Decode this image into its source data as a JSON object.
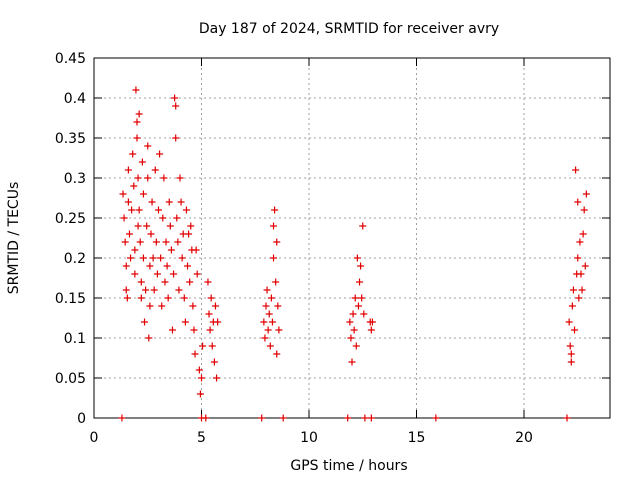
{
  "chart_data": {
    "type": "scatter",
    "title": "Day 187 of 2024, SRMTID for receiver avry",
    "xlabel": "GPS time / hours",
    "ylabel": "SRMTID / TECUs",
    "xlim": [
      0,
      24
    ],
    "ylim": [
      0,
      0.45
    ],
    "x_ticks": [
      "0",
      "5",
      "10",
      "15",
      "20"
    ],
    "y_ticks": [
      "0",
      "0.05",
      "0.1",
      "0.15",
      "0.2",
      "0.25",
      "0.3",
      "0.35",
      "0.4",
      "0.45"
    ],
    "grid": true,
    "marker": "plus",
    "color": "#e00000",
    "series": [
      {
        "points": [
          [
            1.35,
            0.28
          ],
          [
            1.4,
            0.25
          ],
          [
            1.45,
            0.22
          ],
          [
            1.5,
            0.19
          ],
          [
            1.5,
            0.16
          ],
          [
            1.55,
            0.15
          ],
          [
            1.6,
            0.27
          ],
          [
            1.6,
            0.31
          ],
          [
            1.65,
            0.23
          ],
          [
            1.7,
            0.2
          ],
          [
            1.75,
            0.26
          ],
          [
            1.8,
            0.33
          ],
          [
            1.85,
            0.29
          ],
          [
            1.9,
            0.21
          ],
          [
            1.9,
            0.18
          ],
          [
            1.95,
            0.41
          ],
          [
            2.0,
            0.37
          ],
          [
            2.0,
            0.35
          ],
          [
            2.05,
            0.3
          ],
          [
            2.05,
            0.24
          ],
          [
            2.1,
            0.38
          ],
          [
            2.1,
            0.26
          ],
          [
            2.15,
            0.22
          ],
          [
            2.2,
            0.17
          ],
          [
            2.2,
            0.15
          ],
          [
            2.25,
            0.32
          ],
          [
            2.3,
            0.28
          ],
          [
            2.3,
            0.2
          ],
          [
            2.35,
            0.12
          ],
          [
            2.4,
            0.16
          ],
          [
            2.45,
            0.24
          ],
          [
            2.5,
            0.3
          ],
          [
            2.5,
            0.34
          ],
          [
            2.55,
            0.1
          ],
          [
            2.6,
            0.19
          ],
          [
            2.6,
            0.14
          ],
          [
            2.65,
            0.23
          ],
          [
            2.7,
            0.27
          ],
          [
            2.75,
            0.2
          ],
          [
            2.8,
            0.16
          ],
          [
            2.85,
            0.31
          ],
          [
            2.9,
            0.22
          ],
          [
            2.95,
            0.18
          ],
          [
            3.0,
            0.26
          ],
          [
            3.05,
            0.33
          ],
          [
            3.1,
            0.2
          ],
          [
            3.15,
            0.14
          ],
          [
            3.2,
            0.25
          ],
          [
            3.25,
            0.3
          ],
          [
            3.3,
            0.17
          ],
          [
            3.35,
            0.22
          ],
          [
            3.4,
            0.19
          ],
          [
            3.45,
            0.15
          ],
          [
            3.5,
            0.27
          ],
          [
            3.55,
            0.24
          ],
          [
            3.6,
            0.21
          ],
          [
            3.65,
            0.11
          ],
          [
            3.7,
            0.18
          ],
          [
            3.75,
            0.4
          ],
          [
            3.8,
            0.39
          ],
          [
            3.8,
            0.35
          ],
          [
            3.85,
            0.25
          ],
          [
            3.9,
            0.22
          ],
          [
            3.95,
            0.16
          ],
          [
            4.0,
            0.3
          ],
          [
            4.05,
            0.27
          ],
          [
            4.1,
            0.2
          ],
          [
            4.15,
            0.23
          ],
          [
            4.2,
            0.15
          ],
          [
            4.25,
            0.12
          ],
          [
            4.3,
            0.26
          ],
          [
            4.35,
            0.19
          ],
          [
            4.4,
            0.23
          ],
          [
            4.45,
            0.17
          ],
          [
            4.5,
            0.24
          ],
          [
            4.55,
            0.21
          ],
          [
            4.6,
            0.14
          ],
          [
            4.65,
            0.11
          ],
          [
            4.7,
            0.08
          ],
          [
            4.75,
            0.21
          ],
          [
            4.8,
            0.18
          ],
          [
            4.9,
            0.06
          ],
          [
            4.95,
            0.03
          ],
          [
            5.0,
            0.05
          ],
          [
            5.05,
            0.09
          ],
          [
            5.3,
            0.17
          ],
          [
            5.35,
            0.13
          ],
          [
            5.4,
            0.11
          ],
          [
            5.45,
            0.15
          ],
          [
            5.5,
            0.09
          ],
          [
            5.55,
            0.12
          ],
          [
            5.6,
            0.07
          ],
          [
            5.65,
            0.14
          ],
          [
            5.7,
            0.05
          ],
          [
            5.75,
            0.12
          ],
          [
            7.9,
            0.12
          ],
          [
            7.95,
            0.1
          ],
          [
            8.0,
            0.14
          ],
          [
            8.05,
            0.16
          ],
          [
            8.1,
            0.11
          ],
          [
            8.15,
            0.13
          ],
          [
            8.2,
            0.09
          ],
          [
            8.25,
            0.15
          ],
          [
            8.3,
            0.12
          ],
          [
            8.35,
            0.2
          ],
          [
            8.35,
            0.24
          ],
          [
            8.4,
            0.26
          ],
          [
            8.45,
            0.17
          ],
          [
            8.5,
            0.22
          ],
          [
            8.5,
            0.08
          ],
          [
            8.55,
            0.14
          ],
          [
            8.6,
            0.11
          ],
          [
            11.9,
            0.12
          ],
          [
            11.95,
            0.1
          ],
          [
            12.0,
            0.07
          ],
          [
            12.05,
            0.13
          ],
          [
            12.1,
            0.11
          ],
          [
            12.15,
            0.15
          ],
          [
            12.2,
            0.09
          ],
          [
            12.25,
            0.2
          ],
          [
            12.3,
            0.14
          ],
          [
            12.35,
            0.17
          ],
          [
            12.4,
            0.19
          ],
          [
            12.45,
            0.15
          ],
          [
            12.5,
            0.24
          ],
          [
            12.55,
            0.13
          ],
          [
            12.85,
            0.12
          ],
          [
            12.9,
            0.11
          ],
          [
            12.95,
            0.12
          ],
          [
            22.1,
            0.12
          ],
          [
            22.15,
            0.09
          ],
          [
            22.2,
            0.08
          ],
          [
            22.2,
            0.07
          ],
          [
            22.25,
            0.14
          ],
          [
            22.3,
            0.16
          ],
          [
            22.35,
            0.11
          ],
          [
            22.4,
            0.31
          ],
          [
            22.45,
            0.18
          ],
          [
            22.5,
            0.27
          ],
          [
            22.5,
            0.2
          ],
          [
            22.55,
            0.15
          ],
          [
            22.6,
            0.22
          ],
          [
            22.65,
            0.18
          ],
          [
            22.7,
            0.16
          ],
          [
            22.75,
            0.23
          ],
          [
            22.8,
            0.26
          ],
          [
            22.85,
            0.19
          ],
          [
            22.9,
            0.28
          ],
          [
            1.3,
            0.0
          ],
          [
            5.0,
            0.0
          ],
          [
            5.2,
            0.0
          ],
          [
            7.8,
            0.0
          ],
          [
            8.8,
            0.0
          ],
          [
            11.8,
            0.0
          ],
          [
            12.6,
            0.0
          ],
          [
            12.9,
            0.0
          ],
          [
            15.9,
            0.0
          ],
          [
            22.0,
            0.0
          ]
        ]
      }
    ]
  }
}
